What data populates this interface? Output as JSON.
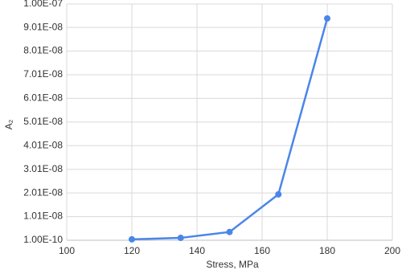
{
  "chart_data": {
    "type": "line",
    "x_label": "Stress, MPa",
    "y_label": "A₂",
    "x": [
      120,
      135,
      150,
      165,
      180
    ],
    "series": [
      {
        "color": "#4a86e8",
        "values": [
          5e-10,
          1.1e-09,
          3.6e-09,
          1.95e-08,
          9.39e-08
        ]
      }
    ],
    "xlim": [
      100,
      200
    ],
    "xticks": [
      100,
      120,
      140,
      160,
      180,
      200
    ],
    "ylim": [
      1e-10,
      1e-07
    ],
    "yticks": [
      {
        "value": 1e-10,
        "label": "1.00E-10"
      },
      {
        "value": 1.01e-08,
        "label": "1.01E-08"
      },
      {
        "value": 2.01e-08,
        "label": "2.01E-08"
      },
      {
        "value": 3.01e-08,
        "label": "3.01E-08"
      },
      {
        "value": 4.01e-08,
        "label": "4.01E-08"
      },
      {
        "value": 5.01e-08,
        "label": "5.01E-08"
      },
      {
        "value": 6.01e-08,
        "label": "6.01E-08"
      },
      {
        "value": 7.01e-08,
        "label": "7.01E-08"
      },
      {
        "value": 8.01e-08,
        "label": "8.01E-08"
      },
      {
        "value": 9.01e-08,
        "label": "9.01E-08"
      },
      {
        "value": 1e-07,
        "label": "1.00E-07"
      }
    ],
    "grid": true
  }
}
